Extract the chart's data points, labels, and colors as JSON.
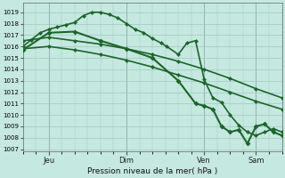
{
  "bg_color": "#c5e8e0",
  "grid_color": "#a0c8c0",
  "line_color": "#1a6628",
  "xlabel": "Pression niveau de la mer( hPa )",
  "ylim": [
    1006.8,
    1019.8
  ],
  "yticks": [
    1007,
    1008,
    1009,
    1010,
    1011,
    1012,
    1013,
    1014,
    1015,
    1016,
    1017,
    1018,
    1019
  ],
  "xlim": [
    0,
    180
  ],
  "xtick_positions": [
    18,
    72,
    126,
    162
  ],
  "xtick_labels": [
    "Jeu",
    "Dim",
    "Ven",
    "Sam"
  ],
  "vlines": [
    18,
    72,
    126,
    162
  ],
  "series": [
    {
      "x": [
        0,
        6,
        12,
        18,
        24,
        30,
        36,
        42,
        48,
        54,
        60,
        66,
        72,
        78,
        84,
        90,
        96,
        100,
        108,
        114,
        120,
        126,
        132,
        138,
        144,
        150,
        156,
        162,
        168,
        174,
        180
      ],
      "y": [
        1016.0,
        1016.6,
        1017.2,
        1017.5,
        1017.7,
        1017.9,
        1018.1,
        1018.7,
        1019.0,
        1019.0,
        1018.8,
        1018.5,
        1018.0,
        1017.5,
        1017.2,
        1016.7,
        1016.3,
        1016.0,
        1015.3,
        1016.3,
        1016.5,
        1013.1,
        1011.5,
        1011.1,
        1010.0,
        1009.1,
        1008.5,
        1008.2,
        1008.5,
        1008.8,
        1008.5
      ],
      "lw": 1.2,
      "ms": 2.5
    },
    {
      "x": [
        0,
        18,
        36,
        54,
        72,
        90,
        108,
        126,
        144,
        162,
        180
      ],
      "y": [
        1016.5,
        1016.8,
        1016.5,
        1016.2,
        1015.8,
        1015.3,
        1014.7,
        1014.0,
        1013.2,
        1012.3,
        1011.5
      ],
      "lw": 1.2,
      "ms": 2.5
    },
    {
      "x": [
        0,
        18,
        36,
        54,
        72,
        90,
        108,
        126,
        144,
        162,
        180
      ],
      "y": [
        1015.8,
        1016.0,
        1015.7,
        1015.3,
        1014.8,
        1014.2,
        1013.5,
        1012.8,
        1012.0,
        1011.2,
        1010.5
      ],
      "lw": 1.2,
      "ms": 2.5
    },
    {
      "x": [
        0,
        18,
        36,
        54,
        72,
        90,
        108,
        120,
        126,
        132,
        138,
        144,
        150,
        156,
        162,
        168,
        174,
        180
      ],
      "y": [
        1015.7,
        1017.2,
        1017.3,
        1016.5,
        1015.8,
        1015.0,
        1013.0,
        1011.0,
        1010.8,
        1010.5,
        1009.0,
        1008.5,
        1008.7,
        1007.5,
        1009.0,
        1009.2,
        1008.5,
        1008.2
      ],
      "lw": 1.5,
      "ms": 3.0
    }
  ]
}
